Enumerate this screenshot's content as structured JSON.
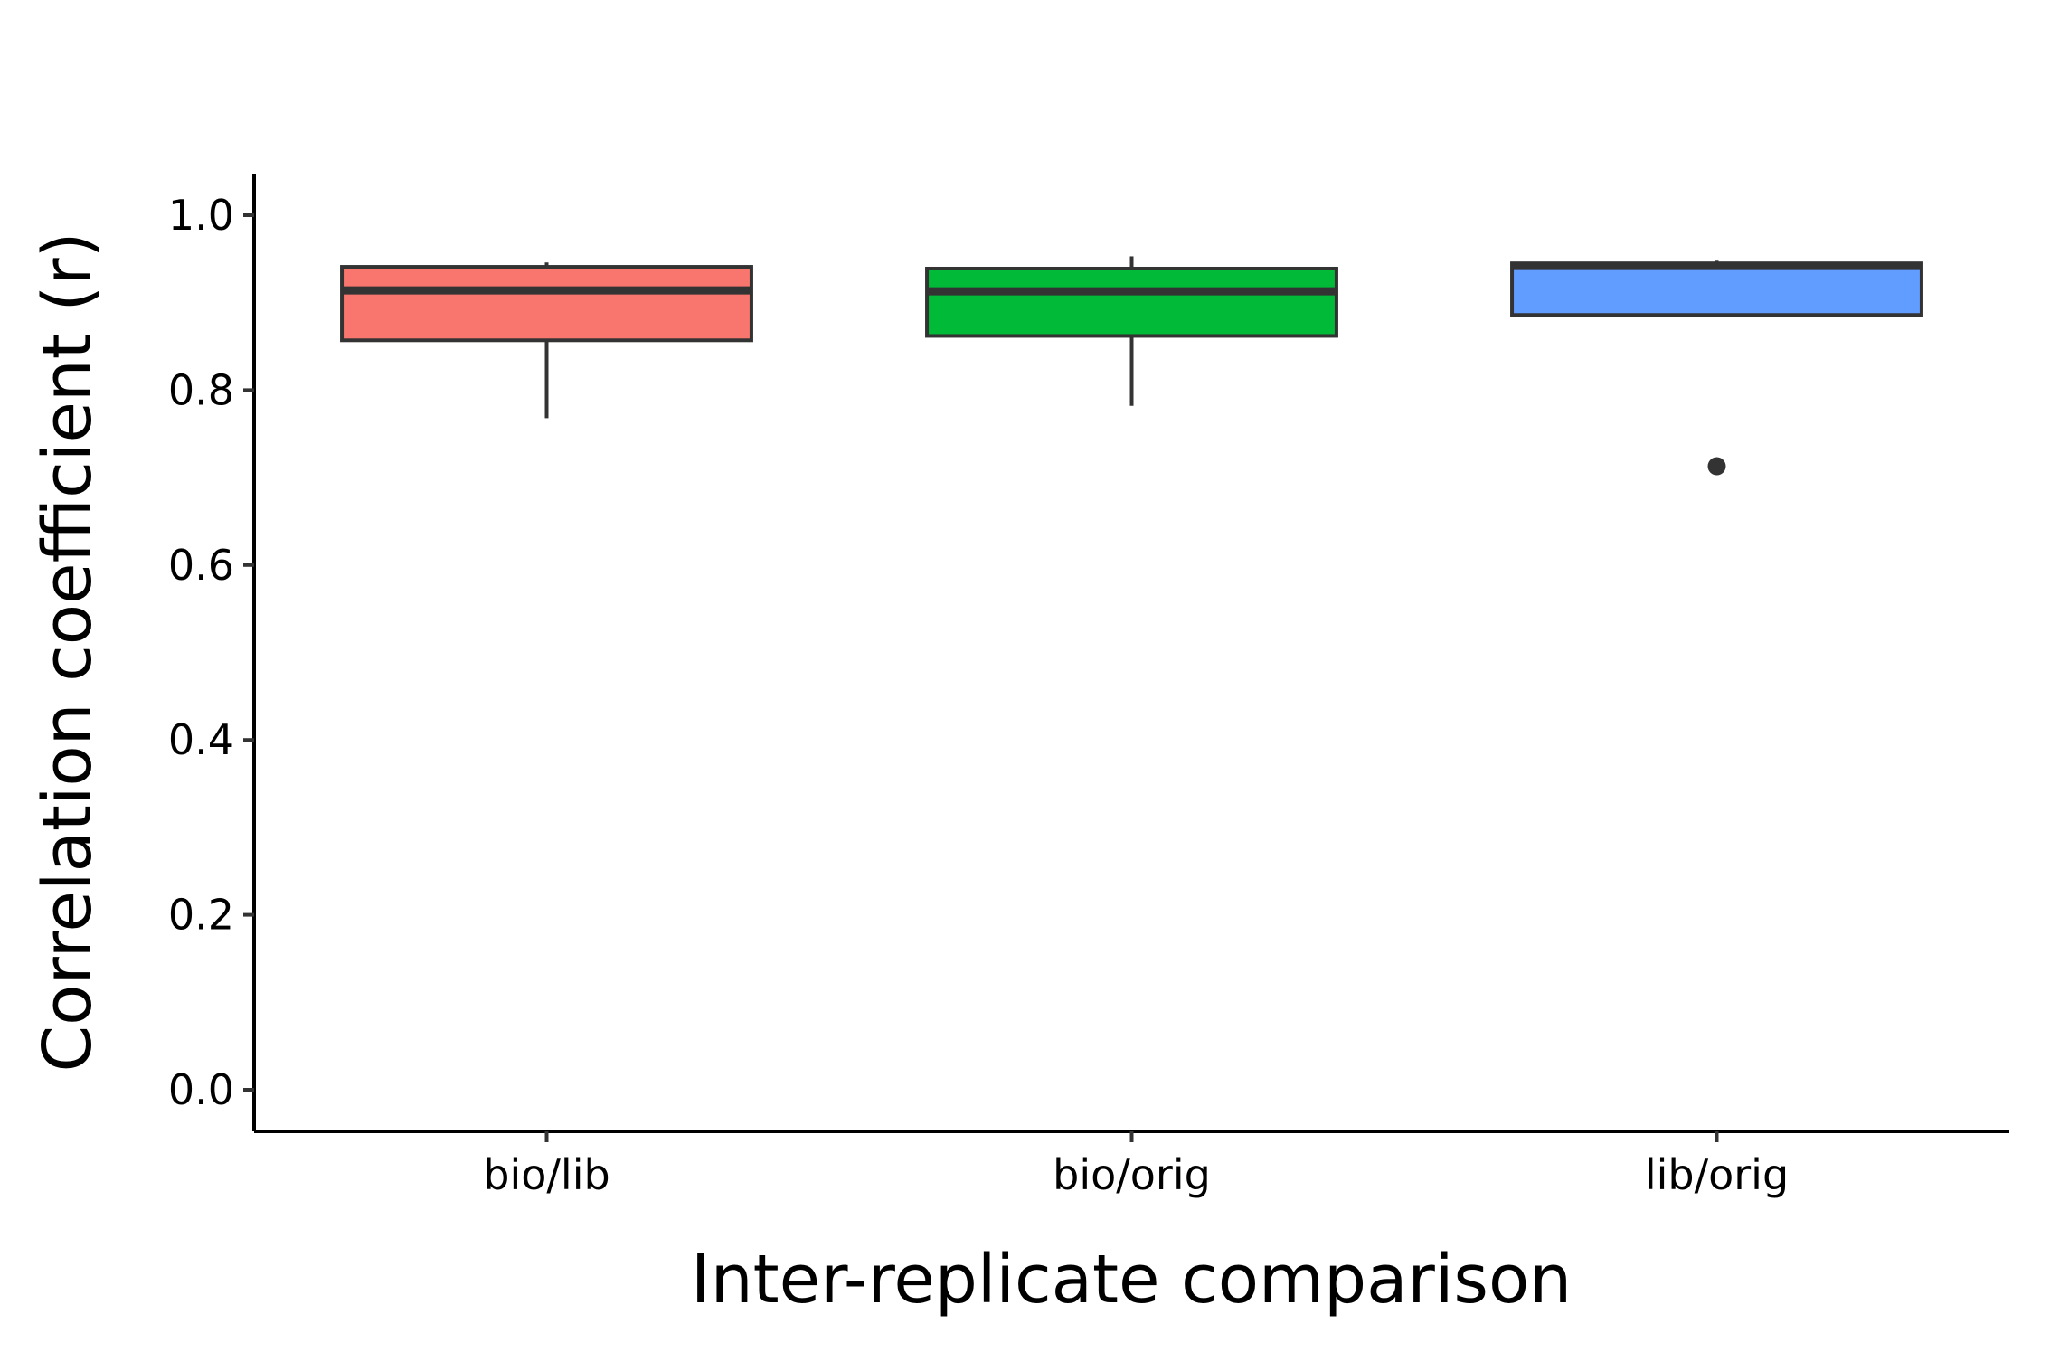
{
  "chart_data": {
    "type": "boxplot",
    "title": "",
    "xlabel": "Inter-replicate comparison",
    "ylabel": "Correlation coefficient (r)",
    "ylim": [
      -0.05,
      1.05
    ],
    "yticks": [
      0.0,
      0.2,
      0.4,
      0.6,
      0.8,
      1.0
    ],
    "ytick_labels": [
      "0.0",
      "0.2",
      "0.4",
      "0.6",
      "0.8",
      "1.0"
    ],
    "categories": [
      "bio/lib",
      "bio/orig",
      "lib/orig"
    ],
    "grid": false,
    "legend": "none",
    "series": [
      {
        "category": "bio/lib",
        "color": "#F8766D",
        "whisker_low": 0.768,
        "q1": 0.857,
        "median": 0.914,
        "q3": 0.941,
        "whisker_high": 0.946,
        "outliers": []
      },
      {
        "category": "bio/orig",
        "color": "#00BA38",
        "whisker_low": 0.782,
        "q1": 0.862,
        "median": 0.913,
        "q3": 0.939,
        "whisker_high": 0.953,
        "outliers": []
      },
      {
        "category": "lib/orig",
        "color": "#619CFF",
        "whisker_low": 0.886,
        "q1": 0.886,
        "median": 0.942,
        "q3": 0.945,
        "whisker_high": 0.948,
        "outliers": [
          0.713
        ]
      }
    ]
  }
}
